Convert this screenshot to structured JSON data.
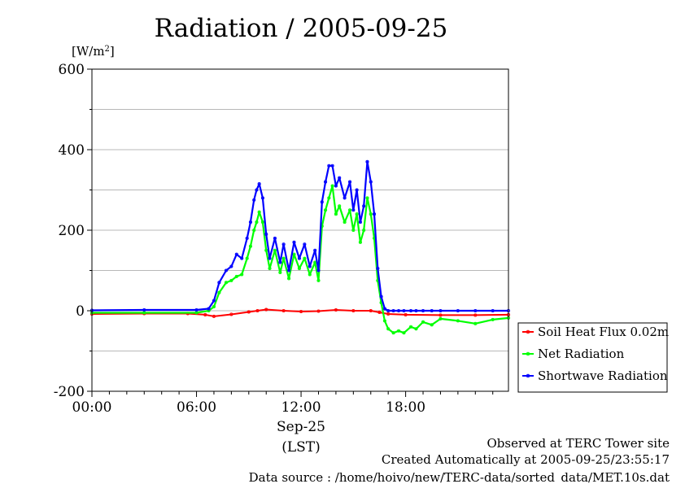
{
  "chart_data": {
    "type": "line",
    "title": "Radiation / 2005-09-25",
    "ylabel": "[W/m²]",
    "ylabel_parts": {
      "prefix": "[W/m",
      "sup": "2",
      "suffix": "]"
    },
    "xlabel_date": "Sep-25",
    "xlabel_tz": "(LST)",
    "xlim_hours": [
      0,
      23.9
    ],
    "ylim": [
      -200,
      600
    ],
    "x_ticks": [
      {
        "hour": 0,
        "label": "00:00"
      },
      {
        "hour": 6,
        "label": "06:00"
      },
      {
        "hour": 12,
        "label": "12:00"
      },
      {
        "hour": 18,
        "label": "18:00"
      }
    ],
    "y_ticks": [
      {
        "value": 600,
        "label": "600"
      },
      {
        "value": 400,
        "label": "400"
      },
      {
        "value": 200,
        "label": "200"
      },
      {
        "value": 0,
        "label": "0"
      },
      {
        "value": -200,
        "label": "-200"
      }
    ],
    "y_grid": [
      500,
      400,
      300,
      200,
      100,
      0,
      -100
    ],
    "grid": true,
    "legend_position": "right-bottom",
    "series": [
      {
        "name": "Soil Heat Flux 0.02m",
        "color": "#ff0000",
        "x": [
          0,
          3,
          5.5,
          6.5,
          7,
          8,
          9,
          9.5,
          10,
          11,
          12,
          13,
          14,
          15,
          16,
          16.5,
          17,
          18,
          20,
          22,
          23.9
        ],
        "y": [
          -8,
          -7,
          -7,
          -10,
          -14,
          -9,
          -3,
          0,
          3,
          0,
          -2,
          -1,
          2,
          0,
          0,
          -4,
          -8,
          -10,
          -11,
          -11,
          -10
        ]
      },
      {
        "name": "Net Radiation",
        "color": "#00ff00",
        "x": [
          0,
          3,
          6,
          6.7,
          7.0,
          7.3,
          7.7,
          8.0,
          8.3,
          8.6,
          8.9,
          9.1,
          9.3,
          9.45,
          9.6,
          9.8,
          10.0,
          10.2,
          10.5,
          10.8,
          11.0,
          11.3,
          11.6,
          11.9,
          12.2,
          12.5,
          12.8,
          13.0,
          13.2,
          13.4,
          13.6,
          13.8,
          14.0,
          14.2,
          14.5,
          14.8,
          15.0,
          15.2,
          15.4,
          15.6,
          15.8,
          16.0,
          16.2,
          16.4,
          16.6,
          16.8,
          17.0,
          17.3,
          17.6,
          17.9,
          18.3,
          18.6,
          19.0,
          19.5,
          20.0,
          21.0,
          22.0,
          23.0,
          23.9
        ],
        "y": [
          -5,
          -5,
          -5,
          0,
          10,
          45,
          70,
          75,
          85,
          90,
          130,
          160,
          200,
          220,
          245,
          220,
          150,
          105,
          150,
          95,
          130,
          80,
          140,
          105,
          130,
          90,
          120,
          75,
          210,
          250,
          280,
          310,
          240,
          260,
          220,
          250,
          200,
          240,
          170,
          200,
          280,
          240,
          180,
          75,
          20,
          -25,
          -45,
          -55,
          -50,
          -55,
          -40,
          -45,
          -28,
          -35,
          -20,
          -25,
          -32,
          -22,
          -18
        ]
      },
      {
        "name": "Shortwave Radiation",
        "color": "#0000ff",
        "x": [
          0,
          3,
          6,
          6.7,
          7.0,
          7.3,
          7.7,
          8.0,
          8.3,
          8.6,
          8.9,
          9.1,
          9.3,
          9.45,
          9.6,
          9.8,
          10.0,
          10.2,
          10.5,
          10.8,
          11.0,
          11.3,
          11.6,
          11.9,
          12.2,
          12.5,
          12.8,
          13.0,
          13.2,
          13.4,
          13.6,
          13.8,
          14.0,
          14.2,
          14.5,
          14.8,
          15.0,
          15.2,
          15.4,
          15.6,
          15.8,
          16.0,
          16.2,
          16.4,
          16.6,
          16.8,
          17.0,
          17.3,
          17.6,
          17.9,
          18.3,
          18.6,
          19.0,
          19.5,
          20.0,
          21.0,
          22.0,
          23.0,
          23.9
        ],
        "y": [
          1,
          2,
          2,
          5,
          25,
          70,
          100,
          110,
          140,
          130,
          180,
          220,
          275,
          300,
          315,
          280,
          190,
          130,
          180,
          120,
          165,
          100,
          170,
          130,
          165,
          110,
          150,
          100,
          270,
          320,
          360,
          360,
          310,
          330,
          280,
          320,
          250,
          300,
          220,
          260,
          370,
          320,
          240,
          105,
          35,
          5,
          0,
          0,
          0,
          0,
          0,
          0,
          0,
          0,
          0,
          0,
          0,
          0,
          0
        ]
      }
    ]
  },
  "footer": {
    "line1": "Observed at TERC Tower site",
    "line2": "Created Automatically at 2005-09-25/23:55:17",
    "line3": "Data source : /home/hoivo/new/TERC-data/sorted_data/MET.10s.dat"
  }
}
